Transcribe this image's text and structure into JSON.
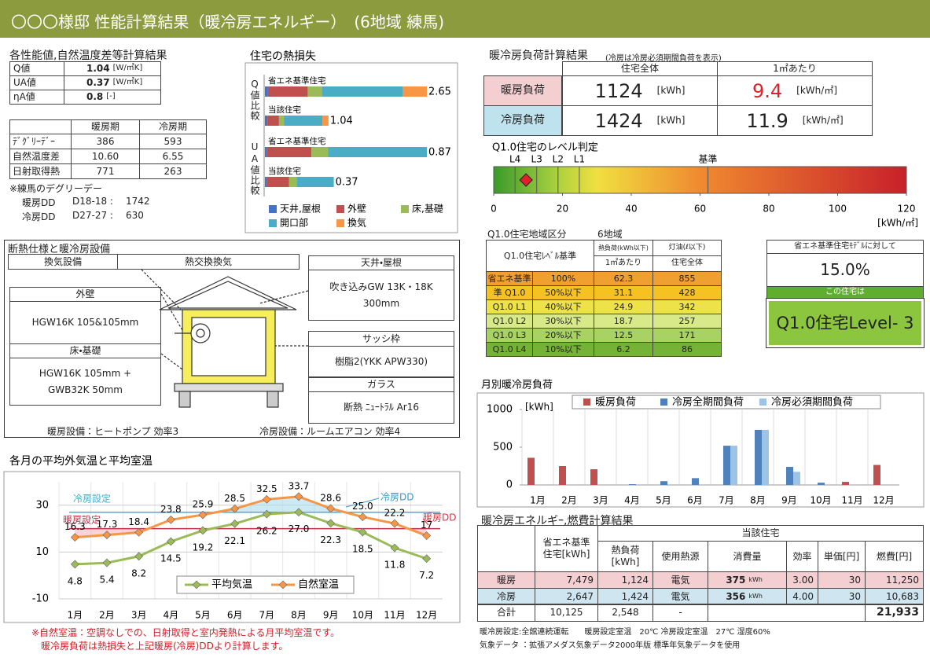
{
  "header": {
    "title": "〇〇〇様邸 性能計算結果（暖冷房エネルギー）　(6地域 練馬)"
  },
  "performance": {
    "title": "各性能値,自然温度差等計算結果",
    "rows": [
      [
        "Q値",
        "1.04",
        "[W/㎡K]"
      ],
      [
        "UA値",
        "0.37",
        "[W/㎡K]"
      ],
      [
        "ηA値",
        "0.8",
        "[-]"
      ]
    ]
  },
  "degree_day": {
    "header": [
      "暖房期",
      "冷房期"
    ],
    "rows": [
      [
        "ﾃﾞｸﾞﾘｰﾃﾞｰ",
        "386",
        "593"
      ],
      [
        "自然温度差",
        "10.60",
        "6.55"
      ],
      [
        "日射取得熱",
        "771",
        "263"
      ]
    ],
    "note": "※練馬のデグリーデー",
    "dd": [
      [
        "暖房DD",
        "D18-18 :",
        "1742"
      ],
      [
        "冷房DD",
        "D27-27 :",
        "630"
      ]
    ]
  },
  "insulation": {
    "title": "断熱仕様と暖冷房設備",
    "ventilation": {
      "label": "換気設備",
      "value": "熱交換換気"
    },
    "wall": {
      "label": "外壁",
      "lines": [
        "HGW16K  105&105mm"
      ]
    },
    "floor": {
      "label": "床・基礎",
      "lines": [
        "HGW16K 105mm +",
        "GWB32K 50mm"
      ]
    },
    "roof": {
      "label": "天井・屋根",
      "lines": [
        "吹き込みGW 13K・18K",
        "300mm"
      ]
    },
    "sash": {
      "label": "サッシ枠",
      "lines": [
        "樹脂2(YKK APW330)"
      ]
    },
    "glass": {
      "label": "ガラス",
      "lines": [
        "断熱 ﾆｭｰﾄﾗﾙ Ar16"
      ]
    },
    "heating": "暖房設備：ヒートポンプ  効率3",
    "cooling": "冷房設備：ルームエアコン  効率4"
  },
  "load_summary": {
    "title": "暖冷房負荷計算結果",
    "subtitle": "(冷房は冷房必須期間負荷を表示)",
    "header": [
      "住宅全体",
      "1㎡あたり"
    ],
    "rows": [
      [
        "暖房負荷",
        "1124",
        "[kWh]",
        "9.4",
        "[kWh/㎡]"
      ],
      [
        "冷房負荷",
        "1424",
        "[kWh]",
        "11.9",
        "[kWh/㎡]"
      ]
    ]
  },
  "region": {
    "title": "Q1.0住宅地域区分",
    "area": "6地域",
    "header": {
      "level": "Q1.0住宅ﾚﾍﾞﾙ基準",
      "heat": "熱負荷(kWh以下)",
      "heat_sub": "1㎡あたり",
      "oil": "灯油(ℓ以下)",
      "oil_sub": "住宅全体"
    },
    "rows": [
      [
        "省エネ基準",
        "100%",
        "62.3",
        "855"
      ],
      [
        "準 Q1.0",
        "50%以下",
        "31.1",
        "428"
      ],
      [
        "Q1.0 L1",
        "40%以下",
        "24.9",
        "342"
      ],
      [
        "Q1.0 L2",
        "30%以下",
        "18.7",
        "257"
      ],
      [
        "Q1.0 L3",
        "20%以下",
        "12.5",
        "171"
      ],
      [
        "Q1.0 L4",
        "10%以下",
        "6.2",
        "86"
      ]
    ]
  },
  "model_compare": {
    "label": "省エネ基準住宅ﾓﾃﾞﾙに対して",
    "ratio": "15.0%",
    "this_house": "この住宅は",
    "level": "Q1.0住宅Level- 3"
  },
  "energy": {
    "title": "暖冷房エネルギｰ,燃費計算結果",
    "header": {
      "base": "省エネ基準住宅[kWh]",
      "house": "当該住宅",
      "load": "熱負荷[kWh]",
      "source": "使用熱源",
      "consumption": "消費量",
      "efficiency": "効率",
      "price": "単価[円]",
      "cost": "燃費[円]"
    },
    "rows": [
      [
        "暖房",
        "7,479",
        "1,124",
        "電気",
        "375",
        "kWh",
        "3.00",
        "30",
        "11,250"
      ],
      [
        "冷房",
        "2,647",
        "1,424",
        "電気",
        "356",
        "kWh",
        "4.00",
        "30",
        "10,683"
      ]
    ],
    "total": [
      "合計",
      "10,125",
      "2,548",
      "-",
      "21,933"
    ]
  },
  "footnotes": [
    "※自然室温：空調なしでの、日射取得と室内発熱による月平均室温です。",
    "暖冷房負荷は熱損失と上記暖房(冷房)DDより計算します。"
  ],
  "notes": [
    "暖冷房設定:全館連続運転　　暖房設定室温　20℃ 冷房設定室温　27℃ 湿度60%",
    "気象データ ：拡張アメダス気象データ2000年版 標準年気象データを使用"
  ],
  "chart_data": [
    {
      "type": "stacked_barh",
      "title": "住宅の熱損失",
      "groups": [
        "Q値比較",
        "UA値比較"
      ],
      "categories": [
        "省エネ基準住宅",
        "当該住宅",
        "省エネ基準住宅",
        "当該住宅"
      ],
      "totals": [
        2.65,
        1.04,
        0.87,
        0.37
      ],
      "series": [
        {
          "name": "天井,屋根",
          "color": "#4472c4",
          "values": [
            0.05,
            0.04,
            0.01,
            0.01
          ]
        },
        {
          "name": "外壁",
          "color": "#c0504d",
          "values": [
            0.65,
            0.19,
            0.24,
            0.12
          ]
        },
        {
          "name": "床,基礎",
          "color": "#9bbb59",
          "values": [
            0.23,
            0.08,
            0.09,
            0.04
          ]
        },
        {
          "name": "開口部",
          "color": "#4bacc6",
          "values": [
            1.33,
            0.63,
            0.53,
            0.2
          ]
        },
        {
          "name": "換気",
          "color": "#f79646",
          "values": [
            0.39,
            0.1,
            null,
            null
          ]
        }
      ]
    },
    {
      "type": "gauge",
      "title": "Q1.0住宅のレベル判定",
      "xlim": [
        0,
        120
      ],
      "xticks": [
        0,
        20,
        40,
        60,
        80,
        100,
        120
      ],
      "xlabel": "[kWh/㎡]",
      "thresholds": [
        {
          "label": "L4",
          "value": 6.2
        },
        {
          "label": "L3",
          "value": 12.5
        },
        {
          "label": "L2",
          "value": 18.7
        },
        {
          "label": "L1",
          "value": 24.9
        },
        {
          "label": "基準",
          "value": 62.3
        }
      ],
      "marker": {
        "value": 9.4,
        "color": "#e0202a"
      },
      "colors": [
        "#3a9a2a",
        "#a8d040",
        "#f0e040",
        "#f08a30",
        "#c8202a"
      ]
    },
    {
      "type": "bar",
      "title": "月別暖冷房負荷",
      "ylabel": "[kWh]",
      "categories": [
        "1月",
        "2月",
        "3月",
        "4月",
        "5月",
        "6月",
        "7月",
        "8月",
        "9月",
        "10月",
        "11月",
        "12月"
      ],
      "ylim": [
        0,
        1000
      ],
      "yticks": [
        0,
        500,
        1000
      ],
      "legend": "top",
      "series": [
        {
          "name": "暖房負荷",
          "color": "#c0504d",
          "values": [
            360,
            250,
            208,
            0,
            0,
            0,
            0,
            0,
            0,
            0,
            41,
            265
          ]
        },
        {
          "name": "冷房全期間負荷",
          "color": "#4f81bd",
          "values": [
            0,
            0,
            0,
            10,
            50,
            90,
            520,
            730,
            240,
            30,
            0,
            0
          ]
        },
        {
          "name": "冷房必須期間負荷",
          "color": "#9dc3e6",
          "values": [
            0,
            0,
            0,
            0,
            0,
            0,
            520,
            730,
            174,
            0,
            0,
            0
          ]
        }
      ]
    },
    {
      "type": "line",
      "title": "各月の平均外気温と平均室温",
      "categories": [
        "1月",
        "2月",
        "3月",
        "4月",
        "5月",
        "6月",
        "7月",
        "8月",
        "9月",
        "10月",
        "11月",
        "12月"
      ],
      "ylim": [
        -10,
        40
      ],
      "yticks": [
        -10,
        10,
        30
      ],
      "grid": true,
      "legend": "bottom",
      "series": [
        {
          "name": "平均気温",
          "color": "#9bbb59",
          "values": [
            4.8,
            5.4,
            8.2,
            14.5,
            19.2,
            22.1,
            26.2,
            27.0,
            22.3,
            18.5,
            11.8,
            7.2
          ],
          "value_labels": [
            "4.8",
            "5.4",
            "8.2",
            "14.5",
            "19.2",
            "22.1",
            "26.2",
            "27.0",
            "22.3",
            "18.5",
            "11.8",
            "7.2"
          ]
        },
        {
          "name": "自然室温",
          "color": "#f79646",
          "values": [
            16.3,
            17.3,
            18.4,
            23.8,
            25.9,
            28.5,
            32.5,
            33.7,
            28.6,
            25.0,
            22.2,
            17
          ],
          "value_labels": [
            "16.3",
            "17.3",
            "18.4",
            "23.8",
            "25.9",
            "28.5",
            "32.5",
            "33.7",
            "28.6",
            "25.0",
            "22.2",
            "17"
          ]
        }
      ],
      "reference_lines": [
        {
          "label": "冷房設定",
          "value": 27,
          "color": "#4bacc6"
        },
        {
          "label": "暖房設定",
          "value": 20,
          "color": "#c0304d"
        }
      ],
      "area_labels": [
        {
          "label": "冷房DD",
          "color": "#3a9ac0"
        },
        {
          "label": "暖房DD",
          "color": "#e03040"
        }
      ]
    }
  ]
}
